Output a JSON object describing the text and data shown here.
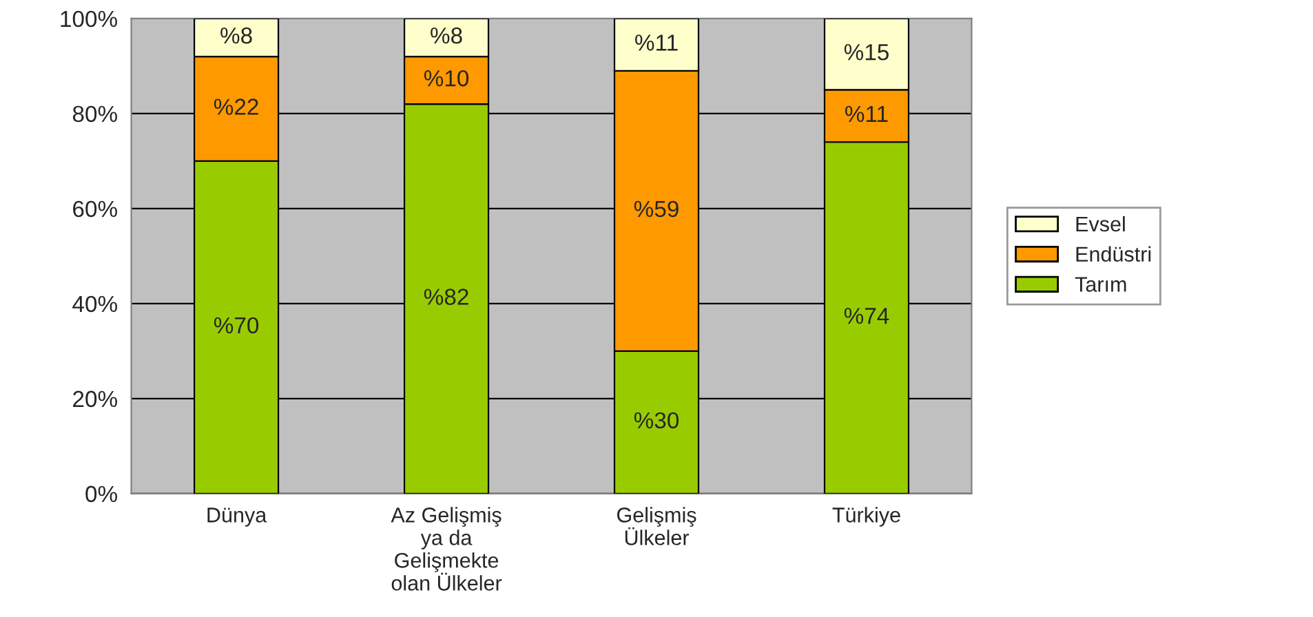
{
  "chart_data": {
    "type": "bar",
    "stacked": true,
    "categories": [
      "Dünya",
      "Az Gelişmiş\nya da\nGelişmekte\nolan Ülkeler",
      "Gelişmiş\nÜlkeler",
      "Türkiye"
    ],
    "series": [
      {
        "name": "Tarım",
        "color": "#99cc00",
        "values": [
          70,
          82,
          30,
          74
        ],
        "value_labels": [
          "%70",
          "%82",
          "%30",
          "%74"
        ]
      },
      {
        "name": "Endüstri",
        "color": "#ff9900",
        "values": [
          22,
          10,
          59,
          11
        ],
        "value_labels": [
          "%22",
          "%10",
          "%59",
          "%11"
        ]
      },
      {
        "name": "Evsel",
        "color": "#ffffcc",
        "values": [
          8,
          8,
          11,
          15
        ],
        "value_labels": [
          "%8",
          "%8",
          "%11",
          "%15"
        ]
      }
    ],
    "ylim": [
      0,
      100
    ],
    "yticks": [
      {
        "value": 0,
        "label": "0%"
      },
      {
        "value": 20,
        "label": "20%"
      },
      {
        "value": 40,
        "label": "40%"
      },
      {
        "value": 60,
        "label": "60%"
      },
      {
        "value": 80,
        "label": "80%"
      },
      {
        "value": 100,
        "label": "100%"
      }
    ],
    "grid": "y",
    "legend": "right"
  }
}
